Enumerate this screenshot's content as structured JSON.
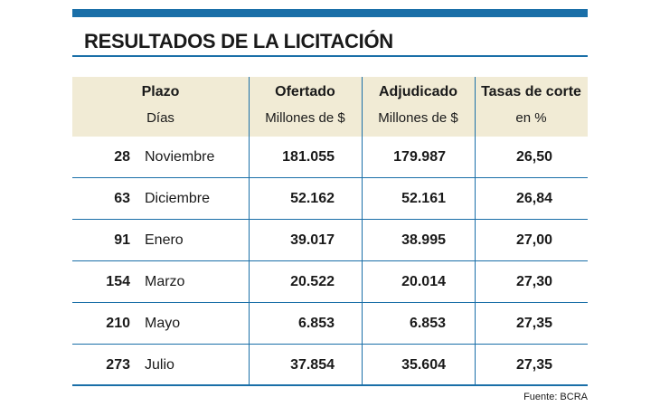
{
  "title": "RESULTADOS DE LA LICITACIÓN",
  "headers": [
    {
      "line1": "Plazo",
      "line2": "Días"
    },
    {
      "line1": "Ofertado",
      "line2": "Millones de $"
    },
    {
      "line1": "Adjudicado",
      "line2": "Millones de $"
    },
    {
      "line1": "Tasas de corte",
      "line2": "en %"
    }
  ],
  "rows": [
    {
      "days": "28",
      "month": "Noviembre",
      "ofertado": "181.055",
      "adjudicado": "179.987",
      "tasa": "26,50"
    },
    {
      "days": "63",
      "month": "Diciembre",
      "ofertado": "52.162",
      "adjudicado": "52.161",
      "tasa": "26,84"
    },
    {
      "days": "91",
      "month": "Enero",
      "ofertado": "39.017",
      "adjudicado": "38.995",
      "tasa": "27,00"
    },
    {
      "days": "154",
      "month": "Marzo",
      "ofertado": "20.522",
      "adjudicado": "20.014",
      "tasa": "27,30"
    },
    {
      "days": "210",
      "month": "Mayo",
      "ofertado": "6.853",
      "adjudicado": "6.853",
      "tasa": "27,35"
    },
    {
      "days": "273",
      "month": "Julio",
      "ofertado": "37.854",
      "adjudicado": "35.604",
      "tasa": "27,35"
    }
  ],
  "source": "Fuente: BCRA",
  "colors": {
    "accent": "#1a6fa8",
    "header_bg": "#f1ebd5"
  }
}
